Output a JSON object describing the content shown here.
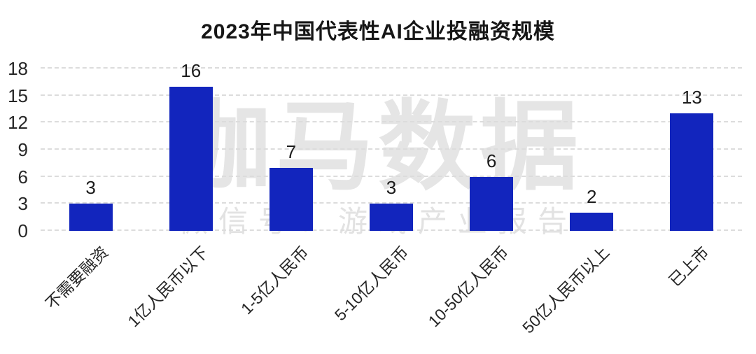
{
  "chart_data": {
    "type": "bar",
    "title": "2023年中国代表性AI企业投融资规模",
    "categories": [
      "不需要融资",
      "1亿人民币以下",
      "1-5亿人民币",
      "5-10亿人民币",
      "10-50亿人民币",
      "50亿人民币以上",
      "已上市"
    ],
    "values": [
      3,
      16,
      7,
      3,
      6,
      2,
      13
    ],
    "value_labels": [
      "3",
      "16",
      "7",
      "3",
      "6",
      "2",
      "13"
    ],
    "ylim": [
      0,
      18
    ],
    "yticks": [
      0,
      3,
      6,
      9,
      12,
      15,
      18
    ],
    "xlabel": "",
    "ylabel": "",
    "legend": "none",
    "grid": "horizontal-dashed",
    "x_tick_rotation_deg": 45
  },
  "watermark": {
    "main": "伽马数据",
    "sub": "微信号：游戏产业报告"
  },
  "colors": {
    "bar": "#1225bd",
    "gridline": "#dcdcdc",
    "title_text": "#161616",
    "axis_text": "#262626",
    "watermark": "#e5e5e5",
    "background": "#ffffff"
  }
}
